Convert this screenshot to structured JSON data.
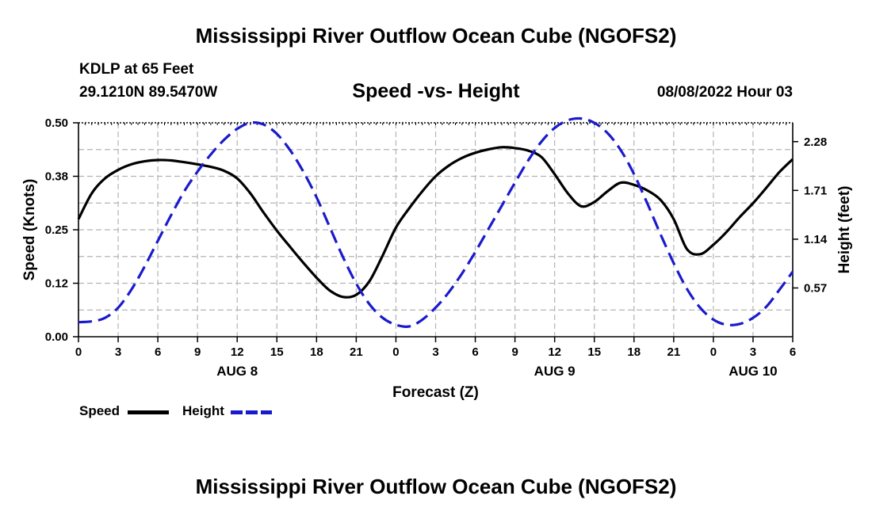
{
  "page": {
    "title": "Mississippi River Outflow Ocean Cube (NGOFS2)",
    "station": "KDLP at 65 Feet",
    "coords": "29.1210N  89.5470W",
    "subtitle": "Speed -vs- Height",
    "datetime": "08/08/2022 Hour 03",
    "bottom_title": "Mississippi River Outflow Ocean Cube (NGOFS2)"
  },
  "legend": {
    "speed_label": "Speed",
    "height_label": "Height"
  },
  "colors": {
    "speed": "#000000",
    "height": "#1a1acc",
    "grid": "#b4b4b4"
  },
  "chart_data": {
    "type": "line",
    "xlabel": "Forecast (Z)",
    "x_unit": "hours since AUG 8 00Z",
    "xlim": [
      0,
      54
    ],
    "x_ticks": [
      0,
      3,
      6,
      9,
      12,
      15,
      18,
      21,
      24,
      27,
      30,
      33,
      36,
      39,
      42,
      45,
      48,
      51,
      54
    ],
    "x_tick_labels": [
      "0",
      "3",
      "6",
      "9",
      "12",
      "15",
      "18",
      "21",
      "0",
      "3",
      "6",
      "9",
      "12",
      "15",
      "18",
      "21",
      "0",
      "3",
      "6"
    ],
    "day_labels": [
      {
        "x": 12,
        "label": "AUG 8"
      },
      {
        "x": 36,
        "label": "AUG 9"
      },
      {
        "x": 51,
        "label": "AUG 10"
      }
    ],
    "y_left": {
      "label": "Speed (Knots)",
      "lim": [
        0,
        0.5
      ],
      "ticks": [
        0.0,
        0.125,
        0.25,
        0.375,
        0.5
      ],
      "tick_labels": [
        "0.00",
        "0.12",
        "0.25",
        "0.38",
        "0.50"
      ]
    },
    "y_right": {
      "label": "Height (feet)",
      "lim": [
        0,
        2.5
      ],
      "ticks": [
        0.57,
        1.14,
        1.71,
        2.28
      ],
      "tick_labels": [
        "0.57",
        "1.14",
        "1.71",
        "2.28"
      ]
    },
    "grid": true,
    "series": [
      {
        "name": "Speed",
        "axis": "left",
        "style": "solid",
        "x": [
          0,
          1,
          2,
          3,
          4,
          5,
          6,
          7,
          8,
          9,
          10,
          11,
          12,
          13,
          14,
          15,
          16,
          17,
          18,
          19,
          20,
          21,
          22,
          23,
          24,
          25,
          26,
          27,
          28,
          29,
          30,
          31,
          32,
          33,
          34,
          35,
          36,
          37,
          38,
          39,
          40,
          41,
          42,
          43,
          44,
          45,
          46,
          47,
          48,
          49,
          50,
          51,
          52,
          53,
          54
        ],
        "values": [
          0.275,
          0.335,
          0.37,
          0.39,
          0.403,
          0.41,
          0.413,
          0.412,
          0.408,
          0.403,
          0.397,
          0.388,
          0.37,
          0.335,
          0.29,
          0.248,
          0.21,
          0.173,
          0.138,
          0.108,
          0.093,
          0.098,
          0.13,
          0.19,
          0.255,
          0.3,
          0.34,
          0.375,
          0.4,
          0.418,
          0.43,
          0.438,
          0.443,
          0.441,
          0.435,
          0.42,
          0.38,
          0.335,
          0.305,
          0.315,
          0.34,
          0.36,
          0.355,
          0.342,
          0.32,
          0.275,
          0.205,
          0.193,
          0.215,
          0.245,
          0.28,
          0.312,
          0.348,
          0.385,
          0.415
        ]
      },
      {
        "name": "Height",
        "axis": "right",
        "style": "dashed",
        "x": [
          0,
          1,
          2,
          3,
          4,
          5,
          6,
          7,
          8,
          9,
          10,
          11,
          12,
          13,
          14,
          15,
          16,
          17,
          18,
          19,
          20,
          21,
          22,
          23,
          24,
          25,
          26,
          27,
          28,
          29,
          30,
          31,
          32,
          33,
          34,
          35,
          36,
          37,
          38,
          39,
          40,
          41,
          42,
          43,
          44,
          45,
          46,
          47,
          48,
          49,
          50,
          51,
          52,
          53,
          54
        ],
        "values": [
          0.17,
          0.18,
          0.22,
          0.34,
          0.55,
          0.82,
          1.12,
          1.42,
          1.7,
          1.93,
          2.13,
          2.3,
          2.43,
          2.5,
          2.48,
          2.37,
          2.18,
          1.93,
          1.63,
          1.28,
          0.93,
          0.62,
          0.38,
          0.22,
          0.14,
          0.12,
          0.2,
          0.34,
          0.52,
          0.74,
          0.99,
          1.26,
          1.53,
          1.8,
          2.06,
          2.28,
          2.44,
          2.53,
          2.55,
          2.5,
          2.38,
          2.18,
          1.9,
          1.56,
          1.2,
          0.86,
          0.56,
          0.34,
          0.2,
          0.14,
          0.15,
          0.22,
          0.35,
          0.55,
          0.76
        ]
      }
    ]
  }
}
